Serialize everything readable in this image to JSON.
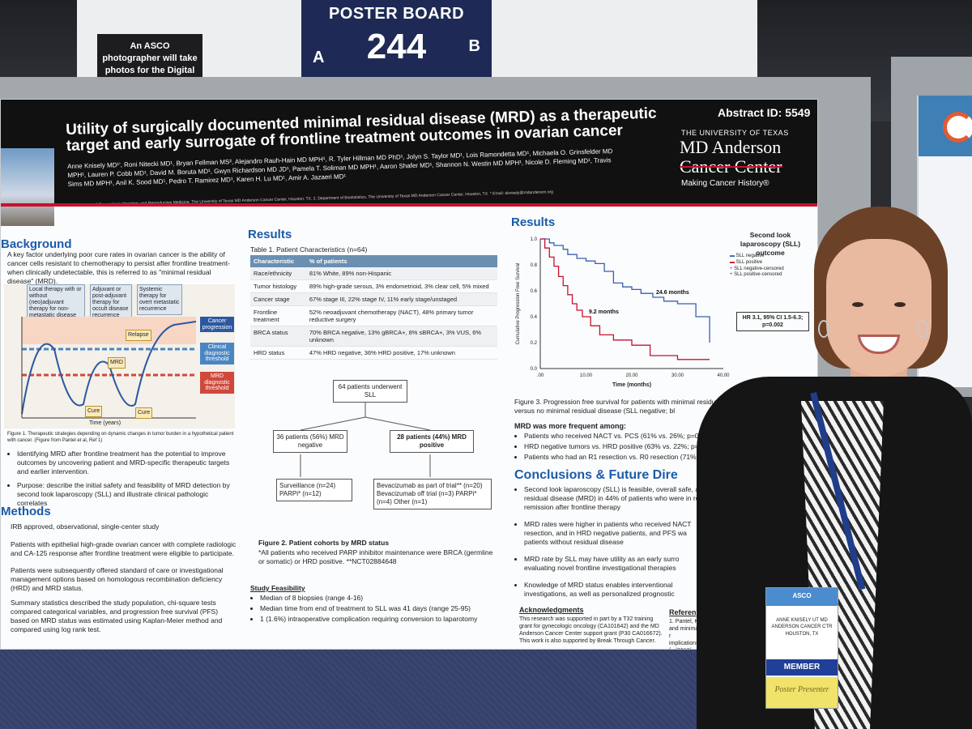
{
  "environment": {
    "photo_note": "An ASCO photographer will take photos for the Digital Program.",
    "board_label": "POSTER BOARD",
    "board_number": "244",
    "board_side_a": "A",
    "board_side_b": "B"
  },
  "poster": {
    "abstract_id": "Abstract ID: 5549",
    "title": "Utility of surgically documented minimal residual disease (MRD) as a therapeutic target and early surrogate of frontline treatment outcomes in ovarian cancer",
    "authors": "Anne Knisely MD¹', Roni Nitecki MD¹, Bryan Fellman MS², Alejandro Rauh-Hain MD MPH¹, R. Tyler Hillman MD PhD¹, Jolyn S. Taylor MD¹, Lois Ramondetta MD¹, Michaela O. Grinsfelder MD MPH¹, Lauren P. Cobb MD¹, David M. Boruta MD¹, Gwyn Richardson MD JD¹, Pamela T. Soliman MD MPH¹, Aaron Shafer MD¹, Shannon N. Westin MD MPH¹, Nicole D. Fleming MD¹, Travis Sims MD MPH¹, Anil K. Sood MD¹, Pedro T. Ramirez MD¹, Karen H. Lu MD¹, Amir A. Jazaeri MD¹",
    "affiliation": "1. Department of Gynecologic Oncology and Reproductive Medicine, The University of Texas MD Anderson Cancer Center, Houston, TX. 2. Department of Biostatistics, The University of Texas MD Anderson Cancer Center, Houston, TX. * Email: aknisely@mdanderson.org",
    "logo": {
      "univ": "THE UNIVERSITY OF TEXAS",
      "name1": "MD Anderson",
      "name2": "Cancer Center",
      "tagline": "Making Cancer History®"
    },
    "background": {
      "heading": "Background",
      "intro": "A key factor underlying poor cure rates in ovarian cancer is the ability of cancer cells resistant to chemotherapy to persist after frontline treatment- when clinically undetectable, this is referred to as \"minimal residual disease\" (MRD).",
      "box1": "Local therapy with or without (neo)adjuvant therapy for non-metastatic disease",
      "box2": "Adjuvant or post-adjuvant therapy for occult disease recurrence",
      "box3": "Systemic therapy for overt metastatic recurrence",
      "legend1": "Cancer progression",
      "legend2": "Clinical diagnostic threshold",
      "legend3": "MRD diagnostic threshold",
      "relapse": "Relapse",
      "mrd": "MRD",
      "cure1": "Cure",
      "cure2": "Cure",
      "xlabel": "Time (years)",
      "ylabel": "Tumour load (number of cells)",
      "fig1": "Figure 1. Therapeutic strategies depending on dynamic changes in tumor burden in a hypothetical patient with cancer. (Figure from Pantel et al, Ref 1)",
      "bullet1": "Identifying MRD after frontline treatment has the potential to improve outcomes by uncovering patient and MRD-specific therapeutic targets and earlier intervention.",
      "bullet2": "Purpose: describe the initial safety and feasibility of MRD detection by second look laparoscopy (SLL) and illustrate clinical pathologic correlates"
    },
    "methods": {
      "heading": "Methods",
      "p1": "IRB approved, observational, single-center study",
      "p2": "Patients with epithelial high-grade ovarian cancer with complete radiologic and CA-125 response after frontline treatment were eligible to participate.",
      "p3": "Patients were subsequently offered standard of care or investigational management options based on homologous recombination deficiency (HRD) and MRD status.",
      "p4": "Summary statistics described the study population, chi-square tests compared categorical variables, and progression free survival (PFS) based on MRD status was estimated using Kaplan-Meier method and compared using log rank test."
    },
    "results_mid": {
      "heading": "Results",
      "table_caption": "Table 1. Patient Characteristics (n=64)",
      "col1": "Characteristic",
      "col2": "% of patients",
      "rows": [
        {
          "k": "Race/ethnicity",
          "v": "81% White, 89% non-Hispanic"
        },
        {
          "k": "Tumor histology",
          "v": "89% high-grade serous, 3% endometrioid, 3% clear cell, 5% mixed"
        },
        {
          "k": "Cancer stage",
          "v": "67% stage III, 22% stage IV, 11% early stage/unstaged"
        },
        {
          "k": "Frontline treatment",
          "v": "52% neoadjuvant chemotherapy (NACT), 48% primary tumor reductive surgery"
        },
        {
          "k": "BRCA status",
          "v": "70% BRCA negative, 13% gBRCA+, 8% sBRCA+, 3% VUS, 6% unknown"
        },
        {
          "k": "HRD status",
          "v": "47% HRD negative, 36% HRD positive, 17% unknown"
        }
      ],
      "flow_top": "64 patients underwent SLL",
      "flow_left": "36 patients (56%) MRD negative",
      "flow_right": "28 patients (44%) MRD positive",
      "left_list": "Surveillance (n=24) PARPi* (n=12)",
      "right_list": "Bevacizumab as part of trial** (n=20) Bevacizumab off trial (n=3) PARPi* (n=4) Other (n=1)",
      "fig2": "Figure 2. Patient cohorts by MRD status",
      "fig2_note": "*All patients who received PARP inhibitor maintenance were BRCA (germline or somatic) or HRD positive. **NCT02884648",
      "feas_heading": "Study Feasibility",
      "feas1": "Median of 8 biopsies (range 4-16)",
      "feas2": "Median time from end of treatment to SLL was 41 days (range 25-95)",
      "feas3": "1 (1.6%) intraoperative complication requiring conversion to laparotomy"
    },
    "results_right": {
      "heading": "Results",
      "legend_title": "Second look laparoscopy (SLL) outcome",
      "legend": [
        "SLL negative",
        "SLL positive",
        "SLL negative-censored",
        "SLL positive-censored"
      ],
      "ylabel": "Cumulative Progression Free Survival",
      "xlabel": "Time (months)",
      "xticks": [
        ".00",
        "10.00",
        "20.00",
        "30.00",
        "40.00"
      ],
      "yticks": [
        "1.0",
        "0.8",
        "0.6",
        "0.4",
        "0.2",
        "0.0"
      ],
      "label_a": "9.2 months",
      "label_b": "24.6 months",
      "hr": "HR 3.1, 95% CI 1.5-6.3; p=0.002",
      "fig3": "Figure 3. Progression free survival for patients with minimal residual disease (S positive; red line) versus no minimal residual disease (SLL negative; bl",
      "mrd_heading": "MRD was more frequent among:",
      "mrd1": "Patients who received NACT vs. PCS (61% vs. 26%; p=0.005)",
      "mrd2": "HRD negative tumors vs. HRD positive (63% vs. 22%; p=0.0",
      "mrd3": "Patients who had an R1 resection vs. R0 resection (71% vs."
    },
    "conclusions": {
      "heading": "Conclusions & Future Dire",
      "c1": "Second look laparoscopy (SLL) is feasible, overall safe, a residual disease (MRD) in 44% of patients who were in re remission after frontline therapy",
      "c2": "MRD rates were higher in patients who received NACT resection, and in HRD negative patients, and PFS wa patients without residual disease",
      "c3": "MRD rate by SLL may have utility as an early surro evaluating novel frontline investigational therapies",
      "c4": "Knowledge of MRD status enables interventional investigations, as well as personalized prognostic",
      "ack_heading": "Acknowledgments",
      "ack": "This research was supported in part by a T32 training grant for gynecologic oncology (CA101642) and the MD Anderson Cancer Center support grant (P30 CA016672). This work is also supported by Break Through Cancer.",
      "ref_heading": "Referen",
      "ref": "1. Pantel, K and minimal r implications fo (2019)."
    }
  },
  "badge": {
    "event": "ASCO",
    "name": "ANNE KNISELY UT MD ANDERSON CANCER CTR HOUSTON, TX",
    "member": "MEMBER",
    "role": "Poster Presenter"
  },
  "colors": {
    "section_blue": "#1b5ba8",
    "mda_red": "#c8102e",
    "sll_negative": "#3a5fb0",
    "sll_positive": "#c8102e"
  },
  "chart_data": {
    "type": "line",
    "title": "",
    "xlabel": "Time (months)",
    "ylabel": "Cumulative Progression Free Survival",
    "xlim": [
      0,
      40
    ],
    "ylim": [
      0,
      1
    ],
    "series": [
      {
        "name": "SLL negative",
        "x": [
          0,
          2,
          3,
          5,
          6,
          8,
          10,
          12,
          14,
          16,
          18,
          20,
          22,
          24.6,
          27,
          30,
          34,
          37
        ],
        "y": [
          1,
          0.97,
          0.95,
          0.92,
          0.88,
          0.85,
          0.83,
          0.81,
          0.75,
          0.66,
          0.63,
          0.61,
          0.58,
          0.55,
          0.52,
          0.5,
          0.4,
          0.2
        ]
      },
      {
        "name": "SLL positive",
        "x": [
          0,
          1,
          2,
          3,
          4,
          5,
          6,
          7,
          8,
          9.2,
          11,
          13,
          16,
          20,
          24,
          30,
          37
        ],
        "y": [
          1,
          0.93,
          0.86,
          0.79,
          0.71,
          0.64,
          0.57,
          0.5,
          0.45,
          0.4,
          0.33,
          0.26,
          0.22,
          0.18,
          0.1,
          0.07,
          0.07
        ]
      }
    ]
  }
}
